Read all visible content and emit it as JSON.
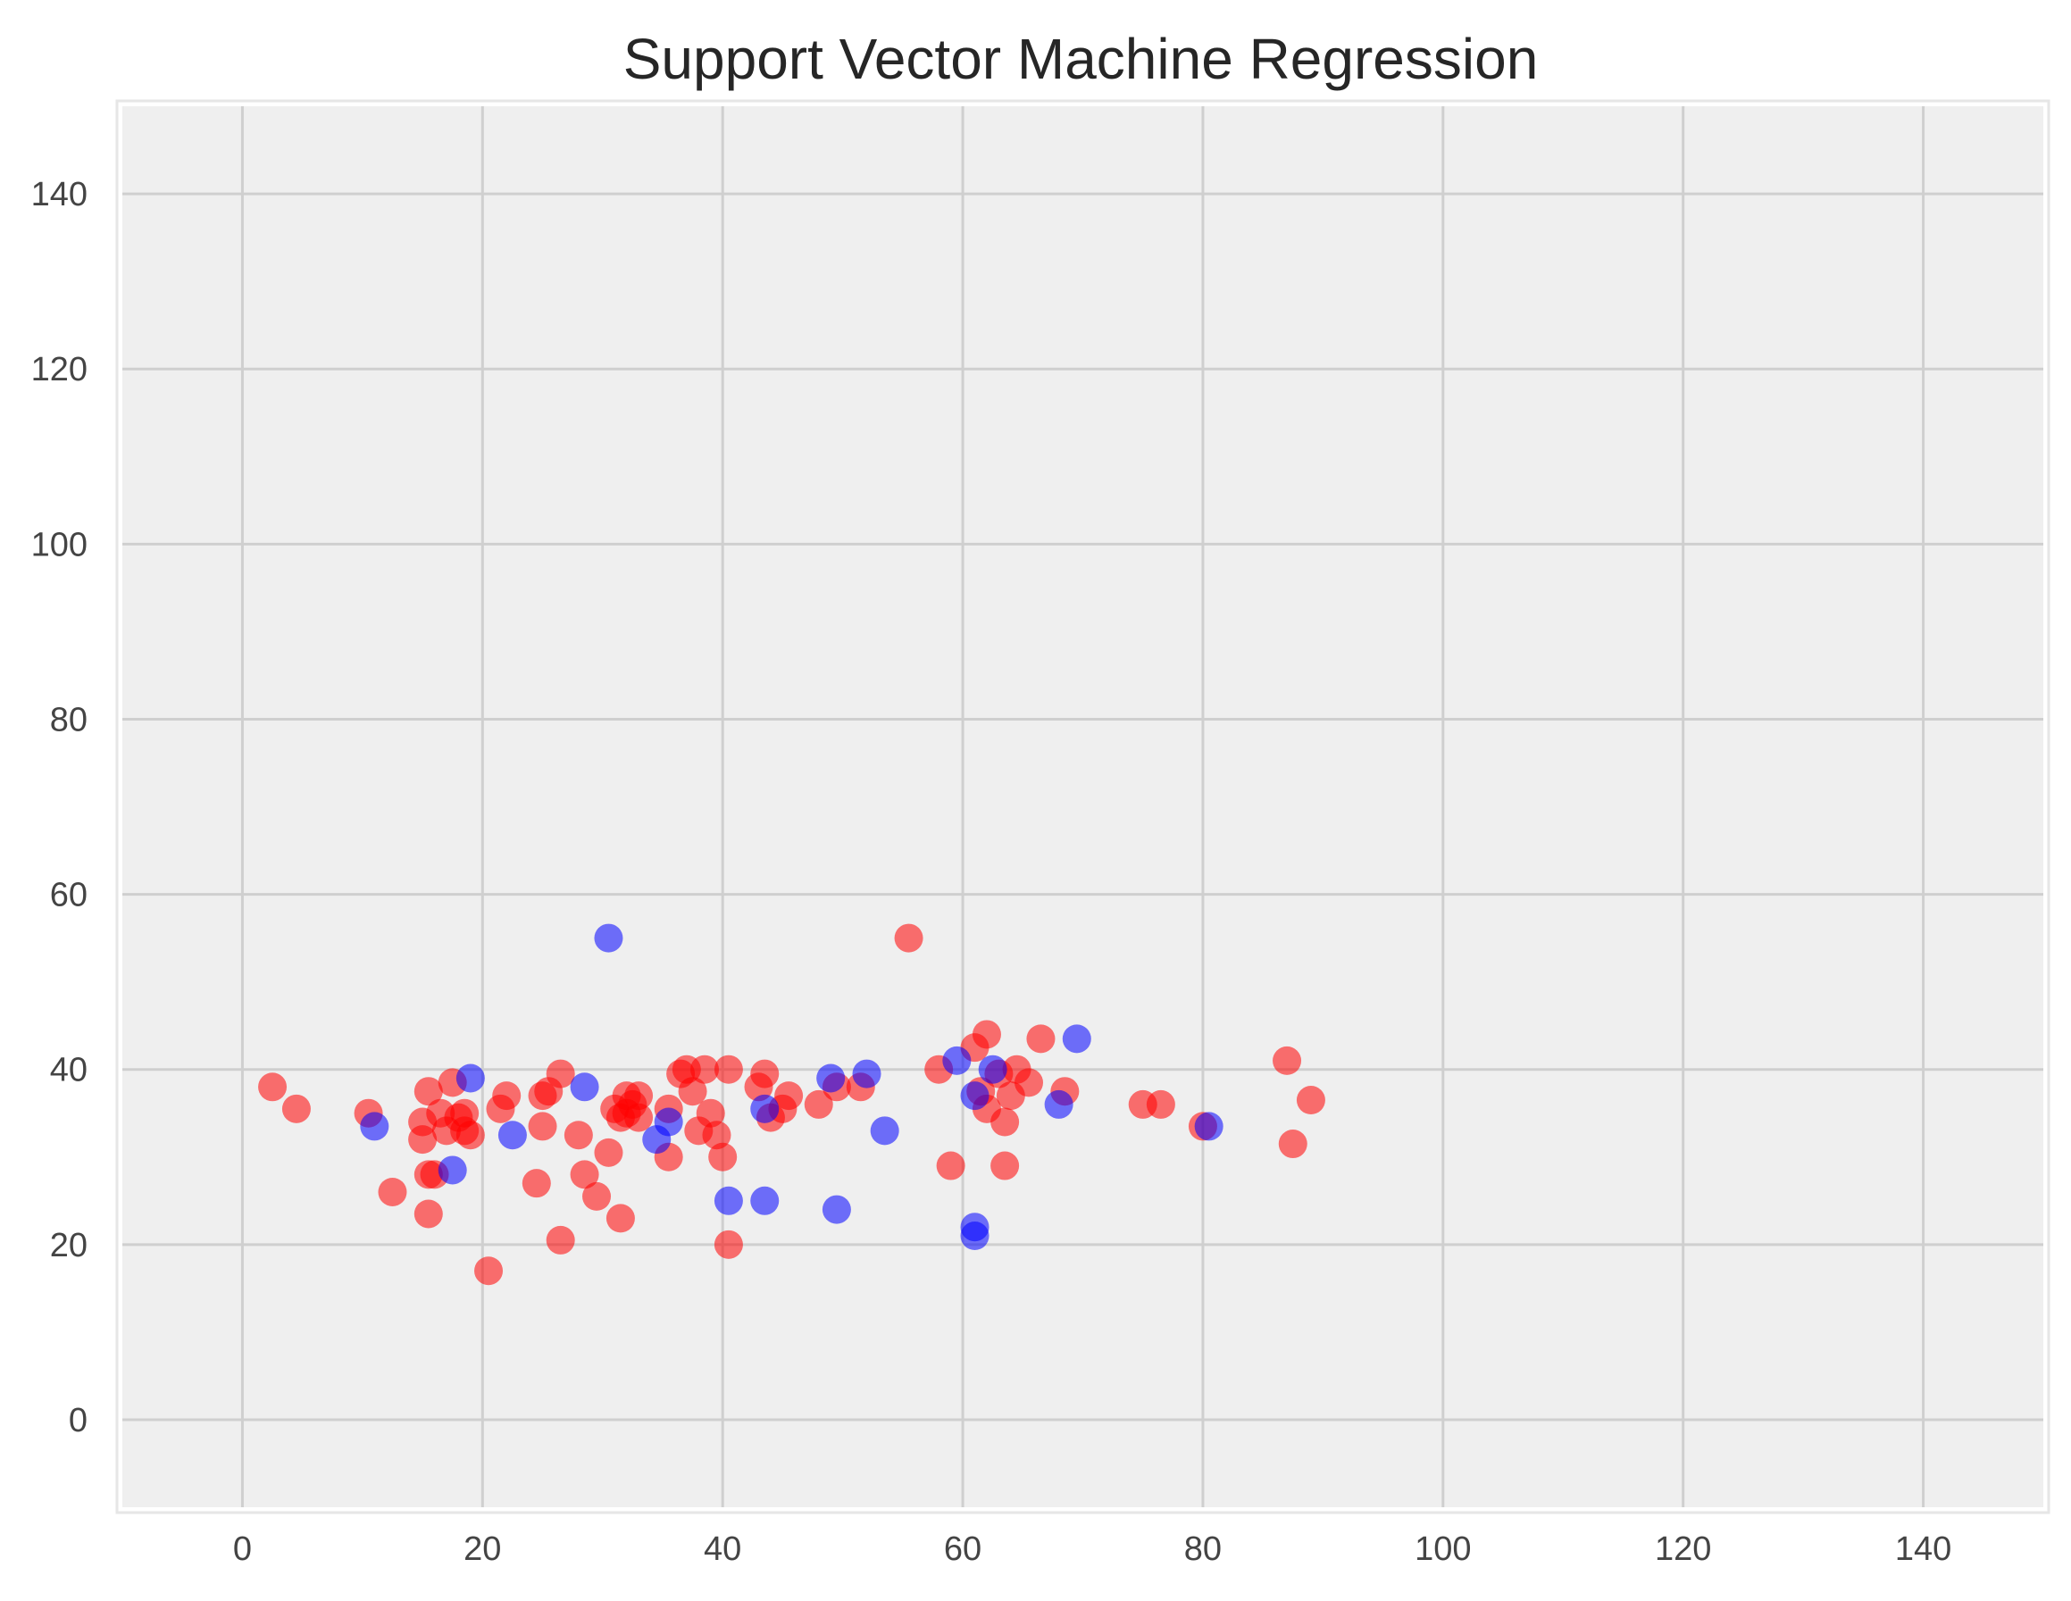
{
  "chart_data": {
    "type": "scatter",
    "title": "Support Vector Machine Regression",
    "xlabel": "",
    "ylabel": "",
    "xlim": [
      -10,
      150
    ],
    "ylim": [
      -10,
      150
    ],
    "x_ticks": [
      0,
      20,
      40,
      60,
      80,
      100,
      120,
      140
    ],
    "y_ticks": [
      0,
      20,
      40,
      60,
      80,
      100,
      120,
      140
    ],
    "x_tick_labels": [
      "0",
      "20",
      "40",
      "60",
      "80",
      "100",
      "120",
      "140"
    ],
    "y_tick_labels": [
      "0",
      "20",
      "40",
      "60",
      "80",
      "100",
      "120",
      "140"
    ],
    "grid": true,
    "legend": "none",
    "colors": {
      "background": "#efefef",
      "grid": "#cfcfcf",
      "series_1": "#ff0000",
      "series_2": "#0000ff"
    },
    "series": [
      {
        "color": "#ff0000",
        "points": [
          [
            2.5,
            38
          ],
          [
            4.5,
            35.5
          ],
          [
            10.5,
            35
          ],
          [
            12.5,
            26
          ],
          [
            15,
            34
          ],
          [
            15,
            32
          ],
          [
            15.5,
            37.5
          ],
          [
            15.5,
            28
          ],
          [
            16,
            28
          ],
          [
            15.5,
            23.5
          ],
          [
            16.5,
            35
          ],
          [
            17,
            33
          ],
          [
            17.5,
            38.5
          ],
          [
            18,
            34.5
          ],
          [
            18.5,
            33
          ],
          [
            18.5,
            35
          ],
          [
            19,
            32.5
          ],
          [
            20.5,
            17
          ],
          [
            21.5,
            35.5
          ],
          [
            22,
            37
          ],
          [
            24.5,
            27
          ],
          [
            25,
            33.5
          ],
          [
            25,
            37
          ],
          [
            25.5,
            37.5
          ],
          [
            26.5,
            39.5
          ],
          [
            26.5,
            20.5
          ],
          [
            28,
            32.5
          ],
          [
            28.5,
            28
          ],
          [
            29.5,
            25.5
          ],
          [
            30.5,
            30.5
          ],
          [
            31,
            35.5
          ],
          [
            31.5,
            34.5
          ],
          [
            31.5,
            23
          ],
          [
            32,
            37
          ],
          [
            32,
            35
          ],
          [
            32.5,
            36
          ],
          [
            33,
            37
          ],
          [
            33,
            34.5
          ],
          [
            35.5,
            30
          ],
          [
            35.5,
            35.5
          ],
          [
            36.5,
            39.5
          ],
          [
            37,
            40
          ],
          [
            37.5,
            37.5
          ],
          [
            38,
            33
          ],
          [
            38.5,
            40
          ],
          [
            39,
            35
          ],
          [
            39.5,
            32.5
          ],
          [
            40,
            30
          ],
          [
            40.5,
            20
          ],
          [
            40.5,
            40
          ],
          [
            43,
            38
          ],
          [
            43.5,
            39.5
          ],
          [
            44,
            34.5
          ],
          [
            45,
            35.5
          ],
          [
            45.5,
            37
          ],
          [
            48,
            36
          ],
          [
            49.5,
            38
          ],
          [
            51.5,
            38
          ],
          [
            55.5,
            55
          ],
          [
            58,
            40
          ],
          [
            59,
            29
          ],
          [
            61,
            42.5
          ],
          [
            61.5,
            37.5
          ],
          [
            62,
            44
          ],
          [
            62,
            35.5
          ],
          [
            63,
            39.5
          ],
          [
            63.5,
            34
          ],
          [
            63.5,
            29
          ],
          [
            64,
            37
          ],
          [
            64.5,
            40
          ],
          [
            65.5,
            38.5
          ],
          [
            66.5,
            43.5
          ],
          [
            68.5,
            37.5
          ],
          [
            75,
            36
          ],
          [
            76.5,
            36
          ],
          [
            80,
            33.5
          ],
          [
            87,
            41
          ],
          [
            87.5,
            31.5
          ],
          [
            89,
            36.5
          ]
        ]
      },
      {
        "color": "#0000ff",
        "points": [
          [
            11,
            33.5
          ],
          [
            17.5,
            28.5
          ],
          [
            19,
            39
          ],
          [
            22.5,
            32.5
          ],
          [
            28.5,
            38
          ],
          [
            30.5,
            55
          ],
          [
            34.5,
            32
          ],
          [
            35.5,
            34
          ],
          [
            40.5,
            25
          ],
          [
            43.5,
            35.5
          ],
          [
            43.5,
            25
          ],
          [
            49,
            39
          ],
          [
            49.5,
            24
          ],
          [
            52,
            39.5
          ],
          [
            53.5,
            33
          ],
          [
            59.5,
            41
          ],
          [
            61,
            37
          ],
          [
            61,
            22
          ],
          [
            61,
            21
          ],
          [
            62.5,
            40
          ],
          [
            68,
            36
          ],
          [
            69.5,
            43.5
          ],
          [
            80.5,
            33.5
          ]
        ]
      }
    ]
  }
}
